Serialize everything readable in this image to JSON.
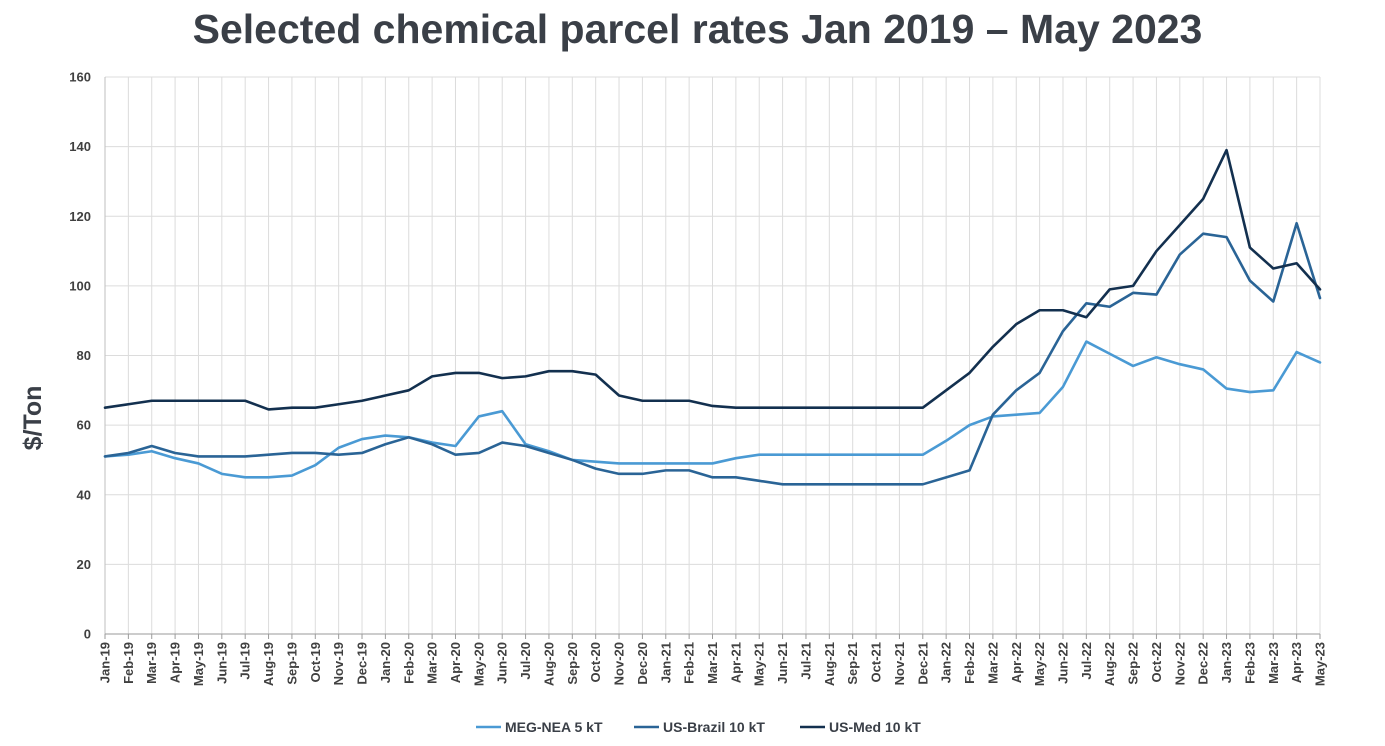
{
  "chart_data": {
    "type": "line",
    "title": "Selected chemical parcel rates Jan 2019 – May 2023",
    "xlabel": "",
    "ylabel": "$/Ton",
    "ylim": [
      0,
      160
    ],
    "yticks": [
      "0",
      "20",
      "40",
      "60",
      "80",
      "100",
      "120",
      "140",
      "160"
    ],
    "grid": true,
    "legend_position": "bottom",
    "categories": [
      "Jan-19",
      "Feb-19",
      "Mar-19",
      "Apr-19",
      "May-19",
      "Jun-19",
      "Jul-19",
      "Aug-19",
      "Sep-19",
      "Oct-19",
      "Nov-19",
      "Dec-19",
      "Jan-20",
      "Feb-20",
      "Mar-20",
      "Apr-20",
      "May-20",
      "Jun-20",
      "Jul-20",
      "Aug-20",
      "Sep-20",
      "Oct-20",
      "Nov-20",
      "Dec-20",
      "Jan-21",
      "Feb-21",
      "Mar-21",
      "Apr-21",
      "May-21",
      "Jun-21",
      "Jul-21",
      "Aug-21",
      "Sep-21",
      "Oct-21",
      "Nov-21",
      "Dec-21",
      "Jan-22",
      "Feb-22",
      "Mar-22",
      "Apr-22",
      "May-22",
      "Jun-22",
      "Jul-22",
      "Aug-22",
      "Sep-22",
      "Oct-22",
      "Nov-22",
      "Dec-22",
      "Jan-23",
      "Feb-23",
      "Mar-23",
      "Apr-23",
      "May-23"
    ],
    "series": [
      {
        "name": "MEG-NEA 5 kT",
        "color": "#4a9ad4",
        "values": [
          51,
          51.5,
          52.5,
          50.5,
          49,
          46,
          45,
          45,
          45.5,
          48.5,
          53.5,
          56,
          57,
          56.5,
          55,
          54,
          62.5,
          64,
          54.5,
          52.5,
          50,
          49.5,
          49,
          49,
          49,
          49,
          49,
          50.5,
          51.5,
          51.5,
          51.5,
          51.5,
          51.5,
          51.5,
          51.5,
          51.5,
          55.5,
          60,
          62.5,
          63,
          63.5,
          71,
          84,
          80.5,
          77,
          79.5,
          77.5,
          76,
          70.5,
          69.5,
          70,
          81,
          78
        ]
      },
      {
        "name": "US-Brazil 10 kT",
        "color": "#2a6496",
        "values": [
          51,
          52,
          54,
          52,
          51,
          51,
          51,
          51.5,
          52,
          52,
          51.5,
          52,
          54.5,
          56.5,
          54.5,
          51.5,
          52,
          55,
          54,
          52,
          50,
          47.5,
          46,
          46,
          47,
          47,
          45,
          45,
          44,
          43,
          43,
          43,
          43,
          43,
          43,
          43,
          45,
          47,
          63,
          70,
          75,
          87,
          95,
          94,
          98,
          97.5,
          109,
          115,
          114,
          101.5,
          95.5,
          118,
          96.5
        ]
      },
      {
        "name": "US-Med 10 kT",
        "color": "#13304f",
        "values": [
          65,
          66,
          67,
          67,
          67,
          67,
          67,
          64.5,
          65,
          65,
          66,
          67,
          68.5,
          70,
          74,
          75,
          75,
          73.5,
          74,
          75.5,
          75.5,
          74.5,
          68.5,
          67,
          67,
          67,
          65.5,
          65,
          65,
          65,
          65,
          65,
          65,
          65,
          65,
          65,
          70,
          75,
          82.5,
          89,
          93,
          93,
          91,
          99,
          100,
          110,
          117.5,
          125,
          139,
          111,
          105,
          106.5,
          99
        ]
      }
    ]
  }
}
